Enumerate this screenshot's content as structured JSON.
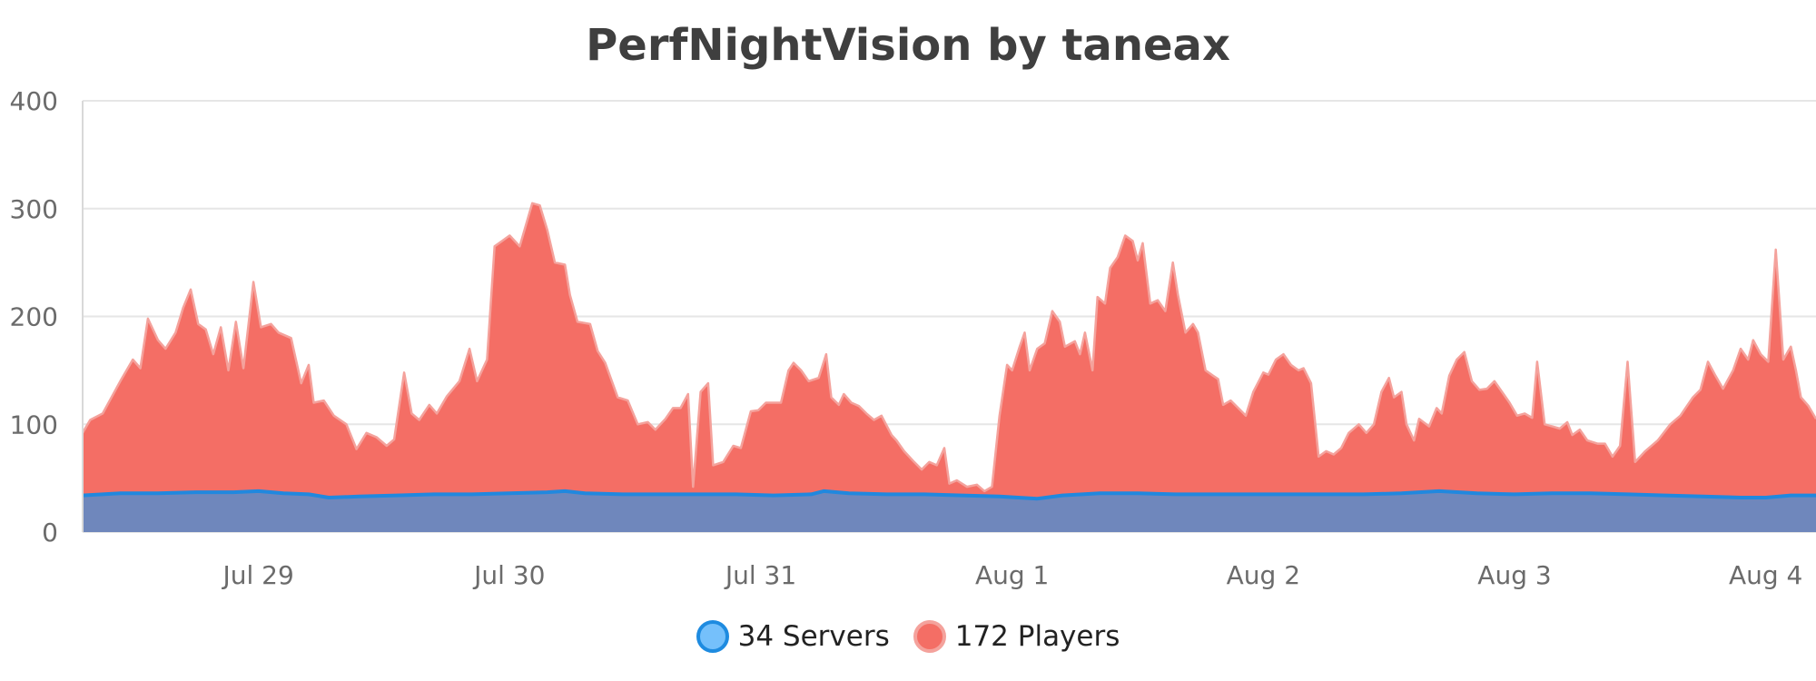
{
  "chart_data": {
    "type": "area",
    "title": "PerfNightVision by taneax",
    "xlabel": "",
    "ylabel": "",
    "ylim": [
      0,
      400
    ],
    "y_ticks": [
      0,
      100,
      200,
      300,
      400
    ],
    "x_ticks": [
      "Jul 29",
      "Jul 30",
      "Jul 31",
      "Aug 1",
      "Aug 2",
      "Aug 3",
      "Aug 4"
    ],
    "x_range_days": [
      28.3,
      35.2
    ],
    "x_tick_days": [
      29,
      30,
      31,
      32,
      33,
      34,
      35
    ],
    "grid": true,
    "legend_position": "bottom-center",
    "series": [
      {
        "name": "Players",
        "legend_label": "172 Players",
        "color": "#f46e65",
        "stroke": "#f4a29c",
        "points": [
          [
            28.3,
            92
          ],
          [
            28.33,
            104
          ],
          [
            28.38,
            110
          ],
          [
            28.45,
            140
          ],
          [
            28.5,
            160
          ],
          [
            28.53,
            152
          ],
          [
            28.56,
            198
          ],
          [
            28.6,
            178
          ],
          [
            28.63,
            170
          ],
          [
            28.67,
            185
          ],
          [
            28.7,
            208
          ],
          [
            28.73,
            225
          ],
          [
            28.76,
            193
          ],
          [
            28.79,
            188
          ],
          [
            28.82,
            165
          ],
          [
            28.85,
            190
          ],
          [
            28.88,
            150
          ],
          [
            28.91,
            195
          ],
          [
            28.94,
            152
          ],
          [
            28.98,
            232
          ],
          [
            29.01,
            190
          ],
          [
            29.05,
            193
          ],
          [
            29.08,
            185
          ],
          [
            29.13,
            180
          ],
          [
            29.17,
            138
          ],
          [
            29.2,
            155
          ],
          [
            29.22,
            120
          ],
          [
            29.26,
            122
          ],
          [
            29.3,
            108
          ],
          [
            29.35,
            100
          ],
          [
            29.39,
            77
          ],
          [
            29.43,
            92
          ],
          [
            29.47,
            88
          ],
          [
            29.51,
            80
          ],
          [
            29.54,
            86
          ],
          [
            29.58,
            148
          ],
          [
            29.61,
            110
          ],
          [
            29.64,
            104
          ],
          [
            29.68,
            118
          ],
          [
            29.71,
            110
          ],
          [
            29.75,
            126
          ],
          [
            29.8,
            140
          ],
          [
            29.84,
            170
          ],
          [
            29.87,
            140
          ],
          [
            29.91,
            160
          ],
          [
            29.94,
            265
          ],
          [
            29.97,
            270
          ],
          [
            30.0,
            275
          ],
          [
            30.04,
            265
          ],
          [
            30.09,
            305
          ],
          [
            30.12,
            303
          ],
          [
            30.15,
            280
          ],
          [
            30.18,
            250
          ],
          [
            30.22,
            248
          ],
          [
            30.24,
            220
          ],
          [
            30.27,
            195
          ],
          [
            30.32,
            193
          ],
          [
            30.35,
            168
          ],
          [
            30.38,
            157
          ],
          [
            30.43,
            125
          ],
          [
            30.47,
            122
          ],
          [
            30.51,
            100
          ],
          [
            30.55,
            102
          ],
          [
            30.58,
            95
          ],
          [
            30.62,
            105
          ],
          [
            30.65,
            115
          ],
          [
            30.68,
            115
          ],
          [
            30.71,
            128
          ],
          [
            30.73,
            42
          ],
          [
            30.76,
            130
          ],
          [
            30.79,
            138
          ],
          [
            30.81,
            62
          ],
          [
            30.85,
            65
          ],
          [
            30.89,
            80
          ],
          [
            30.92,
            78
          ],
          [
            30.96,
            112
          ],
          [
            30.99,
            113
          ],
          [
            31.02,
            120
          ],
          [
            31.08,
            120
          ],
          [
            31.11,
            150
          ],
          [
            31.13,
            157
          ],
          [
            31.16,
            150
          ],
          [
            31.19,
            140
          ],
          [
            31.23,
            143
          ],
          [
            31.26,
            165
          ],
          [
            31.28,
            125
          ],
          [
            31.31,
            118
          ],
          [
            31.33,
            128
          ],
          [
            31.36,
            120
          ],
          [
            31.39,
            117
          ],
          [
            31.42,
            110
          ],
          [
            31.45,
            104
          ],
          [
            31.48,
            108
          ],
          [
            31.52,
            90
          ],
          [
            31.54,
            85
          ],
          [
            31.57,
            75
          ],
          [
            31.61,
            65
          ],
          [
            31.64,
            58
          ],
          [
            31.67,
            65
          ],
          [
            31.7,
            62
          ],
          [
            31.73,
            78
          ],
          [
            31.75,
            45
          ],
          [
            31.78,
            48
          ],
          [
            31.82,
            42
          ],
          [
            31.86,
            44
          ],
          [
            31.89,
            38
          ],
          [
            31.92,
            42
          ],
          [
            31.95,
            108
          ],
          [
            31.98,
            155
          ],
          [
            32.0,
            150
          ],
          [
            32.03,
            172
          ],
          [
            32.05,
            185
          ],
          [
            32.07,
            150
          ],
          [
            32.1,
            170
          ],
          [
            32.13,
            175
          ],
          [
            32.16,
            205
          ],
          [
            32.19,
            195
          ],
          [
            32.21,
            172
          ],
          [
            32.25,
            177
          ],
          [
            32.27,
            165
          ],
          [
            32.29,
            185
          ],
          [
            32.32,
            150
          ],
          [
            32.34,
            218
          ],
          [
            32.37,
            212
          ],
          [
            32.39,
            245
          ],
          [
            32.42,
            255
          ],
          [
            32.45,
            275
          ],
          [
            32.48,
            270
          ],
          [
            32.5,
            252
          ],
          [
            32.52,
            268
          ],
          [
            32.55,
            212
          ],
          [
            32.58,
            215
          ],
          [
            32.61,
            205
          ],
          [
            32.64,
            250
          ],
          [
            32.66,
            220
          ],
          [
            32.69,
            185
          ],
          [
            32.72,
            193
          ],
          [
            32.74,
            185
          ],
          [
            32.77,
            150
          ],
          [
            32.8,
            145
          ],
          [
            32.82,
            142
          ],
          [
            32.84,
            118
          ],
          [
            32.87,
            122
          ],
          [
            32.9,
            115
          ],
          [
            32.93,
            108
          ],
          [
            32.96,
            130
          ],
          [
            33.0,
            148
          ],
          [
            33.02,
            146
          ],
          [
            33.05,
            160
          ],
          [
            33.08,
            165
          ],
          [
            33.11,
            155
          ],
          [
            33.14,
            150
          ],
          [
            33.16,
            152
          ],
          [
            33.19,
            138
          ],
          [
            33.22,
            70
          ],
          [
            33.25,
            75
          ],
          [
            33.28,
            72
          ],
          [
            33.31,
            78
          ],
          [
            33.34,
            92
          ],
          [
            33.38,
            100
          ],
          [
            33.41,
            92
          ],
          [
            33.44,
            100
          ],
          [
            33.47,
            130
          ],
          [
            33.5,
            143
          ],
          [
            33.52,
            125
          ],
          [
            33.55,
            130
          ],
          [
            33.57,
            100
          ],
          [
            33.6,
            85
          ],
          [
            33.62,
            105
          ],
          [
            33.66,
            98
          ],
          [
            33.69,
            115
          ],
          [
            33.71,
            110
          ],
          [
            33.74,
            145
          ],
          [
            33.77,
            160
          ],
          [
            33.8,
            167
          ],
          [
            33.83,
            140
          ],
          [
            33.86,
            132
          ],
          [
            33.89,
            133
          ],
          [
            33.92,
            140
          ],
          [
            33.95,
            130
          ],
          [
            33.98,
            120
          ],
          [
            34.01,
            108
          ],
          [
            34.04,
            110
          ],
          [
            34.07,
            106
          ],
          [
            34.09,
            158
          ],
          [
            34.12,
            100
          ],
          [
            34.15,
            98
          ],
          [
            34.18,
            96
          ],
          [
            34.21,
            102
          ],
          [
            34.23,
            90
          ],
          [
            34.26,
            95
          ],
          [
            34.29,
            85
          ],
          [
            34.33,
            82
          ],
          [
            34.36,
            82
          ],
          [
            34.39,
            70
          ],
          [
            34.42,
            80
          ],
          [
            34.45,
            158
          ],
          [
            34.48,
            65
          ],
          [
            34.52,
            75
          ],
          [
            34.57,
            85
          ],
          [
            34.62,
            100
          ],
          [
            34.66,
            108
          ],
          [
            34.71,
            125
          ],
          [
            34.74,
            132
          ],
          [
            34.77,
            158
          ],
          [
            34.8,
            145
          ],
          [
            34.83,
            133
          ],
          [
            34.87,
            150
          ],
          [
            34.9,
            170
          ],
          [
            34.93,
            160
          ],
          [
            34.95,
            178
          ],
          [
            34.98,
            165
          ],
          [
            35.01,
            158
          ],
          [
            35.04,
            262
          ],
          [
            35.07,
            160
          ],
          [
            35.1,
            172
          ],
          [
            35.12,
            150
          ],
          [
            35.14,
            125
          ],
          [
            35.17,
            117
          ],
          [
            35.2,
            105
          ]
        ]
      },
      {
        "name": "Servers",
        "legend_label": "34 Servers",
        "color": "#6f87bc",
        "stroke": "#2188de",
        "points": [
          [
            28.3,
            34
          ],
          [
            28.38,
            35
          ],
          [
            28.45,
            36
          ],
          [
            28.6,
            36
          ],
          [
            28.75,
            37
          ],
          [
            28.9,
            37
          ],
          [
            29.0,
            38
          ],
          [
            29.1,
            36
          ],
          [
            29.2,
            35
          ],
          [
            29.28,
            32
          ],
          [
            29.4,
            33
          ],
          [
            29.55,
            34
          ],
          [
            29.7,
            35
          ],
          [
            29.85,
            35
          ],
          [
            30.0,
            36
          ],
          [
            30.15,
            37
          ],
          [
            30.22,
            38
          ],
          [
            30.3,
            36
          ],
          [
            30.45,
            35
          ],
          [
            30.6,
            35
          ],
          [
            30.75,
            35
          ],
          [
            30.9,
            35
          ],
          [
            31.05,
            34
          ],
          [
            31.2,
            35
          ],
          [
            31.25,
            38
          ],
          [
            31.35,
            36
          ],
          [
            31.5,
            35
          ],
          [
            31.65,
            35
          ],
          [
            31.8,
            34
          ],
          [
            31.95,
            33
          ],
          [
            32.1,
            31
          ],
          [
            32.2,
            34
          ],
          [
            32.35,
            36
          ],
          [
            32.5,
            36
          ],
          [
            32.65,
            35
          ],
          [
            32.8,
            35
          ],
          [
            32.95,
            35
          ],
          [
            33.1,
            35
          ],
          [
            33.25,
            35
          ],
          [
            33.4,
            35
          ],
          [
            33.55,
            36
          ],
          [
            33.7,
            38
          ],
          [
            33.85,
            36
          ],
          [
            34.0,
            35
          ],
          [
            34.15,
            36
          ],
          [
            34.3,
            36
          ],
          [
            34.45,
            35
          ],
          [
            34.6,
            34
          ],
          [
            34.75,
            33
          ],
          [
            34.9,
            32
          ],
          [
            35.0,
            32
          ],
          [
            35.1,
            34
          ],
          [
            35.2,
            34
          ]
        ]
      }
    ]
  }
}
